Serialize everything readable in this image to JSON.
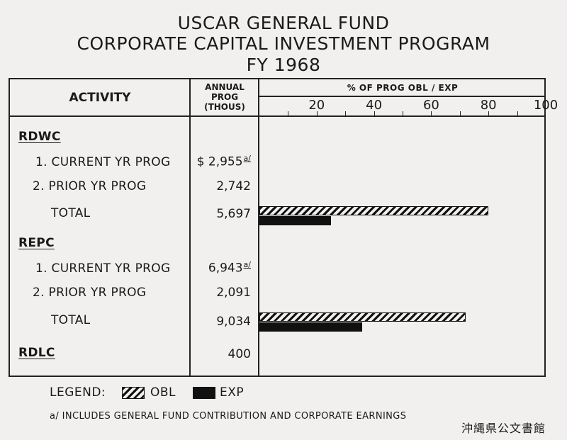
{
  "title": {
    "line1": "USCAR GENERAL FUND",
    "line2": "CORPORATE CAPITAL INVESTMENT PROGRAM",
    "line3": "FY 1968"
  },
  "headers": {
    "activity": "ACTIVITY",
    "annual": "ANNUAL\nPROG\n(THOUS)",
    "pct": "% OF PROG OBL / EXP"
  },
  "axis": {
    "ticks": [
      "20",
      "40",
      "60",
      "80",
      "100"
    ]
  },
  "rows": {
    "rdwc": {
      "label": "RDWC"
    },
    "rdwc_current": {
      "label": "1. CURRENT YR PROG",
      "value": "$ 2,955",
      "note": "a/"
    },
    "rdwc_prior": {
      "label": "2. PRIOR YR PROG",
      "value": "2,742"
    },
    "rdwc_total": {
      "label": "TOTAL",
      "value": "5,697"
    },
    "repc": {
      "label": "REPC"
    },
    "repc_current": {
      "label": "1. CURRENT YR PROG",
      "value": "6,943",
      "note": "a/"
    },
    "repc_prior": {
      "label": "2. PRIOR YR PROG",
      "value": "2,091"
    },
    "repc_total": {
      "label": "TOTAL",
      "value": "9,034"
    },
    "rdlc": {
      "label": "RDLC",
      "value": "400"
    }
  },
  "legend": {
    "label": "LEGEND:",
    "obl": "OBL",
    "exp": "EXP"
  },
  "footnote": "a/ INCLUDES GENERAL FUND CONTRIBUTION AND CORPORATE EARNINGS",
  "stamp": "沖縄県公文書館",
  "chart_data": {
    "type": "bar",
    "orientation": "horizontal",
    "categories": [
      "RDWC TOTAL",
      "REPC TOTAL"
    ],
    "series": [
      {
        "name": "OBL",
        "values": [
          80,
          72
        ],
        "pattern": "hatched"
      },
      {
        "name": "EXP",
        "values": [
          25,
          36
        ],
        "pattern": "solid"
      }
    ],
    "xlim": [
      0,
      100
    ],
    "xticks": [
      20,
      40,
      60,
      80,
      100
    ],
    "xlabel": "% OF PROG OBL / EXP",
    "colors": {
      "ink": "#111111",
      "paper": "#f1f0ee"
    }
  }
}
